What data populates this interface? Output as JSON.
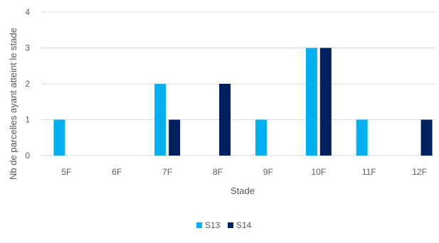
{
  "chart_data": {
    "type": "bar",
    "xlabel": "Stade",
    "ylabel": "Nb de parcelles ayant atteint le stade",
    "categories": [
      "5F",
      "6F",
      "7F",
      "8F",
      "9F",
      "10F",
      "11F",
      "12F"
    ],
    "series": [
      {
        "name": "S13",
        "color": "#00B0F0",
        "values": [
          1,
          0,
          2,
          0,
          1,
          3,
          1,
          0
        ]
      },
      {
        "name": "S14",
        "color": "#002060",
        "values": [
          0,
          0,
          1,
          2,
          0,
          3,
          0,
          1
        ]
      }
    ],
    "ylim": [
      0,
      4
    ],
    "yticks": [
      0,
      1,
      2,
      3,
      4
    ],
    "grid": true,
    "legend_position": "bottom"
  }
}
